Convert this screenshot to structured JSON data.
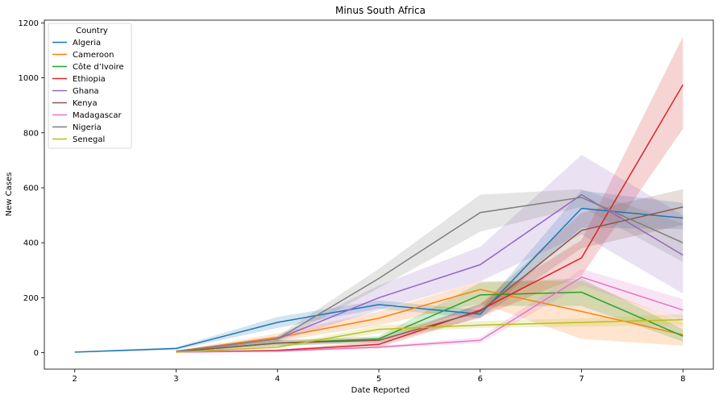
{
  "chart_data": {
    "type": "line",
    "title": "Minus South Africa",
    "xlabel": "Date Reported",
    "ylabel": "New Cases",
    "xlim": [
      1.7,
      8.3
    ],
    "ylim": [
      -60,
      1210
    ],
    "x_ticks": [
      2,
      3,
      4,
      5,
      6,
      7,
      8
    ],
    "y_ticks": [
      0,
      200,
      400,
      600,
      800,
      1000,
      1200
    ],
    "grid": false,
    "legend": {
      "title": "Country",
      "placement": "top-left"
    },
    "series": [
      {
        "name": "Algeria",
        "color": "#1f77b4",
        "x": [
          2,
          3,
          4,
          5,
          6,
          7,
          8
        ],
        "y": [
          2,
          15,
          110,
          175,
          140,
          525,
          490
        ],
        "lower": [
          0,
          10,
          90,
          160,
          125,
          455,
          450
        ],
        "upper": [
          4,
          20,
          130,
          190,
          155,
          590,
          545
        ]
      },
      {
        "name": "Cameroon",
        "color": "#ff7f0e",
        "x": [
          3,
          4,
          5,
          6,
          7,
          8
        ],
        "y": [
          5,
          55,
          125,
          230,
          150,
          65
        ],
        "lower": [
          3,
          40,
          100,
          180,
          50,
          25
        ],
        "upper": [
          8,
          70,
          150,
          260,
          260,
          110
        ]
      },
      {
        "name": "Côte d’Ivoire",
        "color": "#2ca02c",
        "x": [
          3,
          4,
          5,
          6,
          7,
          8
        ],
        "y": [
          3,
          35,
          50,
          210,
          220,
          60
        ],
        "lower": [
          2,
          25,
          40,
          170,
          170,
          40
        ],
        "upper": [
          5,
          45,
          60,
          255,
          270,
          85
        ]
      },
      {
        "name": "Ethiopia",
        "color": "#d62728",
        "x": [
          3,
          4,
          5,
          6,
          7,
          8
        ],
        "y": [
          2,
          8,
          30,
          155,
          345,
          975
        ],
        "lower": [
          1,
          4,
          20,
          130,
          280,
          815
        ],
        "upper": [
          4,
          12,
          40,
          180,
          410,
          1150
        ]
      },
      {
        "name": "Ghana",
        "color": "#9467bd",
        "x": [
          3,
          4,
          5,
          6,
          7,
          8
        ],
        "y": [
          4,
          50,
          200,
          320,
          575,
          355
        ],
        "lower": [
          2,
          40,
          155,
          260,
          430,
          215
        ],
        "upper": [
          6,
          60,
          245,
          385,
          720,
          500
        ]
      },
      {
        "name": "Kenya",
        "color": "#8c564b",
        "x": [
          3,
          4,
          5,
          6,
          7,
          8
        ],
        "y": [
          3,
          35,
          45,
          150,
          445,
          530
        ],
        "lower": [
          2,
          25,
          35,
          125,
          380,
          465
        ],
        "upper": [
          5,
          45,
          55,
          175,
          510,
          595
        ]
      },
      {
        "name": "Madagascar",
        "color": "#e377c2",
        "x": [
          3,
          4,
          5,
          6,
          7,
          8
        ],
        "y": [
          2,
          5,
          20,
          45,
          275,
          155
        ],
        "lower": [
          1,
          3,
          15,
          35,
          245,
          115
        ],
        "upper": [
          3,
          8,
          25,
          55,
          305,
          195
        ]
      },
      {
        "name": "Nigeria",
        "color": "#7f7f7f",
        "x": [
          3,
          4,
          5,
          6,
          7,
          8
        ],
        "y": [
          5,
          50,
          270,
          510,
          565,
          400
        ],
        "lower": [
          3,
          40,
          235,
          440,
          530,
          330
        ],
        "upper": [
          7,
          60,
          305,
          575,
          595,
          470
        ]
      },
      {
        "name": "Senegal",
        "color": "#bcbd22",
        "x": [
          3,
          4,
          5,
          6,
          7,
          8
        ],
        "y": [
          2,
          20,
          85,
          100,
          110,
          120
        ],
        "lower": [
          1,
          15,
          70,
          90,
          95,
          100
        ],
        "upper": [
          3,
          25,
          100,
          115,
          125,
          140
        ]
      }
    ]
  }
}
